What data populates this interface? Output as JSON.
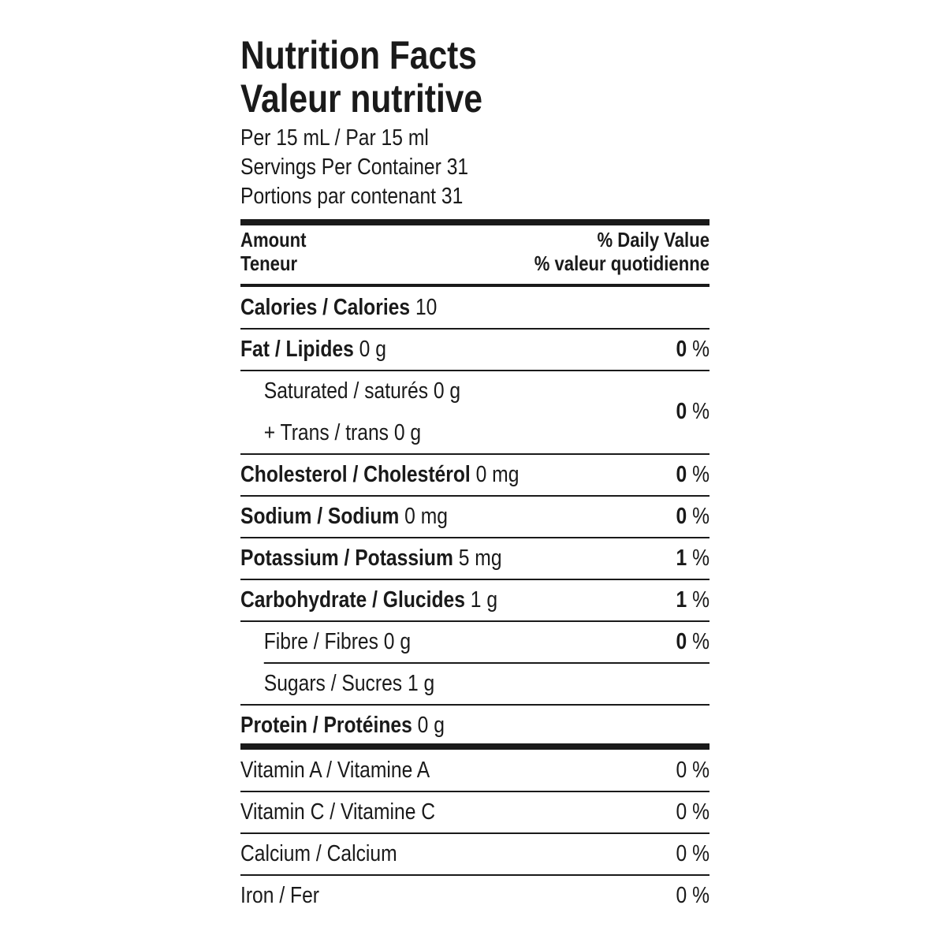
{
  "header": {
    "title_en": "Nutrition Facts",
    "title_fr": "Valeur nutritive",
    "serving": "Per 15 mL / Par 15 ml",
    "servings_en": "Servings Per Container 31",
    "servings_fr": "Portions par contenant 31"
  },
  "column_headers": {
    "amount_en": "Amount",
    "amount_fr": "Teneur",
    "dv_en": "% Daily Value",
    "dv_fr": "% valeur quotidienne"
  },
  "nutrients": [
    {
      "name": "Calories / Calories",
      "amount": "10"
    },
    {
      "name": "Fat / Lipides",
      "amount": "0 g",
      "dv": "0",
      "dv_unit": "%",
      "sub": [
        {
          "lines": [
            {
              "name": "Saturated / saturés",
              "amount": "0 g"
            },
            {
              "name": "+ Trans / trans",
              "amount": "0 g"
            }
          ],
          "dv": "0",
          "dv_unit": "%"
        }
      ]
    },
    {
      "name": "Cholesterol / Cholestérol",
      "amount": "0 mg",
      "dv": "0",
      "dv_unit": "%"
    },
    {
      "name": "Sodium / Sodium",
      "amount": "0 mg",
      "dv": "0",
      "dv_unit": "%"
    },
    {
      "name": "Potassium / Potassium",
      "amount": "5 mg",
      "dv": "1",
      "dv_unit": "%"
    },
    {
      "name": "Carbohydrate / Glucides",
      "amount": "1 g",
      "dv": "1",
      "dv_unit": "%",
      "sub": [
        {
          "lines": [
            {
              "name": "Fibre / Fibres",
              "amount": "0 g"
            }
          ],
          "dv": "0",
          "dv_unit": "%"
        },
        {
          "lines": [
            {
              "name": "Sugars / Sucres",
              "amount": "1 g"
            }
          ]
        }
      ]
    },
    {
      "name": "Protein / Protéines",
      "amount": "0 g"
    }
  ],
  "vitamins": [
    {
      "name": "Vitamin A / Vitamine A",
      "dv": "0 %"
    },
    {
      "name": "Vitamin C / Vitamine C",
      "dv": "0 %"
    },
    {
      "name": "Calcium / Calcium",
      "dv": "0 %"
    },
    {
      "name": "Iron / Fer",
      "dv": "0 %"
    }
  ]
}
